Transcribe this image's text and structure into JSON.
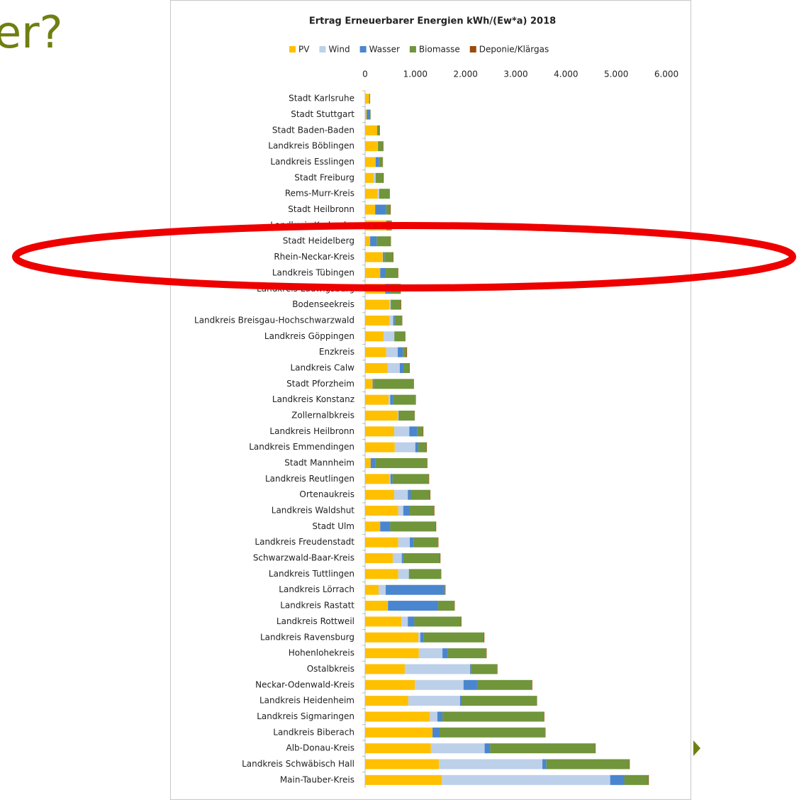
{
  "slide": {
    "title": "er?"
  },
  "chart_data": {
    "type": "stacked-bar-horizontal",
    "title": "Ertrag Erneuerbarer Energien kWh/(Ew*a) 2018",
    "categories": [
      "Stadt Karlsruhe",
      "Stadt Stuttgart",
      "Stadt Baden-Baden",
      "Landkreis Böblingen",
      "Landkreis Esslingen",
      "Stadt Freiburg",
      "Rems-Murr-Kreis",
      "Stadt Heilbronn",
      "Landkreis Karlsruhe",
      "Stadt Heidelberg",
      "Rhein-Neckar-Kreis",
      "Landkreis Tübingen",
      "Landkreis Ludwigsburg",
      "Bodenseekreis",
      "Landkreis Breisgau-Hochschwarzwald",
      "Landkreis Göppingen",
      "Enzkreis",
      "Landkreis Calw",
      "Stadt Pforzheim",
      "Landkreis Konstanz",
      "Zollernalbkreis",
      "Landkreis Heilbronn",
      "Landkreis Emmendingen",
      "Stadt Mannheim",
      "Landkreis Reutlingen",
      "Ortenaukreis",
      "Landkreis Waldshut",
      "Stadt Ulm",
      "Landkreis Freudenstadt",
      "Schwarzwald-Baar-Kreis",
      "Landkreis Tuttlingen",
      "Landkreis Lörrach",
      "Landkreis Rastatt",
      "Landkreis Rottweil",
      "Landkreis Ravensburg",
      "Hohenlohekreis",
      "Ostalbkreis",
      "Neckar-Odenwald-Kreis",
      "Landkreis Heidenheim",
      "Landkreis Sigmaringen",
      "Landkreis Biberach",
      "Alb-Donau-Kreis",
      "Landkreis Schwäbisch Hall",
      "Main-Tauber-Kreis"
    ],
    "series": [
      {
        "name": "PV",
        "color": "#ffc000",
        "values": [
          80,
          30,
          240,
          250,
          210,
          170,
          250,
          200,
          420,
          100,
          350,
          300,
          400,
          480,
          490,
          370,
          420,
          450,
          150,
          470,
          650,
          580,
          590,
          110,
          490,
          580,
          660,
          300,
          660,
          550,
          660,
          270,
          450,
          720,
          1060,
          1070,
          790,
          990,
          860,
          1290,
          1340,
          1310,
          1470,
          1530
        ]
      },
      {
        "name": "Wind",
        "color": "#bdd0ea",
        "values": [
          0,
          0,
          0,
          5,
          0,
          40,
          30,
          0,
          0,
          0,
          5,
          0,
          0,
          30,
          70,
          210,
          230,
          240,
          0,
          30,
          15,
          300,
          410,
          0,
          15,
          270,
          100,
          0,
          230,
          180,
          210,
          140,
          5,
          130,
          40,
          470,
          1300,
          970,
          1030,
          150,
          2,
          1070,
          2060,
          3350
        ]
      },
      {
        "name": "Wasser",
        "color": "#4a86cf",
        "values": [
          0,
          70,
          0,
          0,
          70,
          0,
          0,
          220,
          0,
          130,
          30,
          110,
          100,
          0,
          30,
          2,
          100,
          80,
          30,
          60,
          0,
          160,
          60,
          100,
          40,
          60,
          130,
          200,
          80,
          30,
          2,
          1170,
          1000,
          130,
          70,
          110,
          15,
          270,
          30,
          100,
          140,
          110,
          80,
          280
        ]
      },
      {
        "name": "Biomasse",
        "color": "#70953b",
        "values": [
          15,
          10,
          50,
          100,
          70,
          150,
          200,
          80,
          100,
          280,
          170,
          240,
          200,
          200,
          140,
          210,
          70,
          110,
          780,
          440,
          320,
          110,
          160,
          1020,
          720,
          380,
          480,
          900,
          480,
          730,
          640,
          10,
          320,
          930,
          1190,
          760,
          520,
          1090,
          1500,
          2020,
          2100,
          2090,
          1650,
          480
        ]
      },
      {
        "name": "Deponie/Klärgas",
        "color": "#9c4a0a",
        "values": [
          5,
          0,
          5,
          10,
          5,
          10,
          10,
          10,
          10,
          5,
          10,
          10,
          10,
          10,
          10,
          10,
          15,
          10,
          10,
          10,
          5,
          10,
          10,
          10,
          10,
          10,
          10,
          15,
          10,
          10,
          5,
          10,
          10,
          10,
          15,
          10,
          10,
          10,
          5,
          10,
          10,
          10,
          10,
          10
        ]
      }
    ],
    "xlim": [
      0,
      6000
    ],
    "xticks": [
      0,
      {
        "value": 1000,
        "label": "1.000"
      },
      {
        "value": 2000,
        "label": "2.000"
      },
      {
        "value": 3000,
        "label": "3.000"
      },
      {
        "value": 4000,
        "label": "4.000"
      },
      {
        "value": 5000,
        "label": "5.000"
      },
      {
        "value": 6000,
        "label": "6.000"
      }
    ],
    "grid": false
  }
}
